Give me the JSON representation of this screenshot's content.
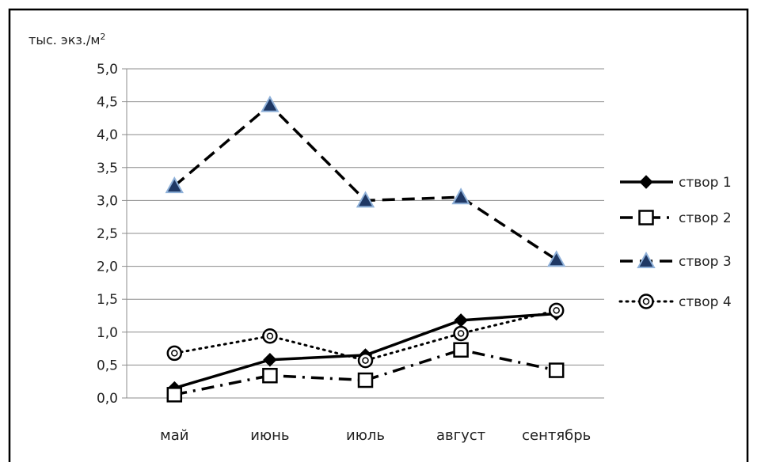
{
  "chart_data": {
    "type": "line",
    "ylabel": "тыс. экз./м",
    "ylabel_sup": "2",
    "categories": [
      "май",
      "июнь",
      "июль",
      "август",
      "сентябрь"
    ],
    "ylim": [
      0,
      5
    ],
    "yticks": [
      "0,0",
      "0,5",
      "1,0",
      "1,5",
      "2,0",
      "2,5",
      "3,0",
      "3,5",
      "4,0",
      "4,5",
      "5,0"
    ],
    "ytick_values": [
      0,
      0.5,
      1,
      1.5,
      2,
      2.5,
      3,
      3.5,
      4,
      4.5,
      5
    ],
    "grid": true,
    "legend_position": "right",
    "series": [
      {
        "name": "створ 1",
        "values": [
          0.15,
          0.58,
          0.65,
          1.18,
          1.28
        ],
        "marker": "diamond",
        "dash": "solid",
        "color": "#000000"
      },
      {
        "name": "створ 2",
        "values": [
          0.05,
          0.34,
          0.27,
          0.73,
          0.42
        ],
        "marker": "square",
        "dash": "dashdot",
        "color": "#000000"
      },
      {
        "name": "створ 3",
        "values": [
          3.22,
          4.45,
          3.0,
          3.05,
          2.1
        ],
        "marker": "triangle",
        "dash": "dash",
        "color": "#000000",
        "marker_fill": "#1f3864",
        "marker_stroke": "#8fb1d9"
      },
      {
        "name": "створ 4",
        "values": [
          0.68,
          0.94,
          0.57,
          0.98,
          1.33
        ],
        "marker": "circle",
        "dash": "dot",
        "color": "#000000"
      }
    ]
  }
}
